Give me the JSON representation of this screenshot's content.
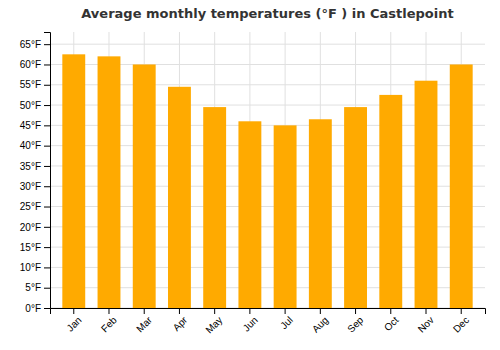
{
  "chart_data": {
    "type": "bar",
    "title": "Average monthly temperatures (°F ) in Castlepoint",
    "categories": [
      "Jan",
      "Feb",
      "Mar",
      "Apr",
      "May",
      "Jun",
      "Jul",
      "Aug",
      "Sep",
      "Oct",
      "Nov",
      "Dec"
    ],
    "values": [
      62.5,
      62.0,
      60.0,
      54.5,
      49.5,
      46.0,
      45.0,
      46.5,
      49.5,
      52.5,
      56.0,
      60.0
    ],
    "color": "#FFAA00",
    "ylim": [
      0,
      68
    ],
    "yticks": [
      {
        "value": 0,
        "label": "0°F"
      },
      {
        "value": 5,
        "label": "5°F"
      },
      {
        "value": 10,
        "label": "10°F"
      },
      {
        "value": 15,
        "label": "15°F"
      },
      {
        "value": 20,
        "label": "20°F"
      },
      {
        "value": 25,
        "label": "25°F"
      },
      {
        "value": 30,
        "label": "30°F"
      },
      {
        "value": 35,
        "label": "35°F"
      },
      {
        "value": 40,
        "label": "40°F"
      },
      {
        "value": 45,
        "label": "45°F"
      },
      {
        "value": 50,
        "label": "50°F"
      },
      {
        "value": 55,
        "label": "55°F"
      },
      {
        "value": 60,
        "label": "60°F"
      },
      {
        "value": 65,
        "label": "65°F"
      }
    ],
    "grid": true
  }
}
